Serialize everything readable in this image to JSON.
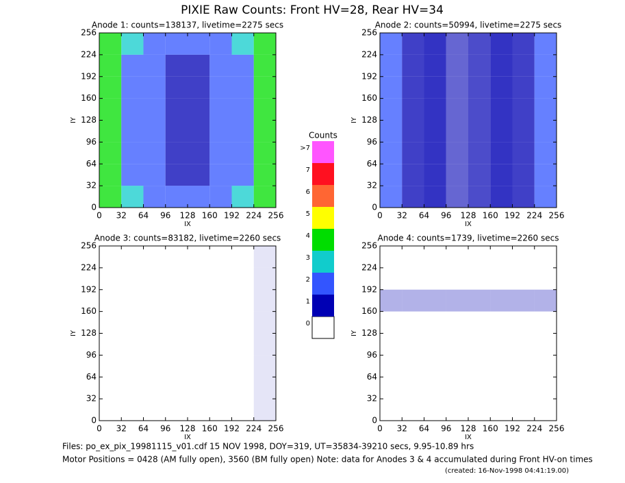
{
  "title": "PIXIE Raw Counts:  Front HV=28, Rear HV=34",
  "chart_data": [
    {
      "type": "heatmap",
      "title": "Anode 1: counts=138137, livetime=2275 secs",
      "xlabel": "IX",
      "ylabel": "IY",
      "xlim": [
        0,
        256
      ],
      "ylim": [
        0,
        256
      ],
      "xticks": [
        0,
        32,
        64,
        96,
        128,
        160,
        192,
        224,
        256
      ],
      "yticks": [
        0,
        32,
        64,
        96,
        128,
        160,
        192,
        224,
        256
      ],
      "values": [
        [
          4,
          2.5,
          2,
          1.5,
          1.5,
          2,
          2.5,
          4
        ],
        [
          3.5,
          2,
          1.5,
          1,
          1.2,
          1.5,
          2,
          3.5
        ],
        [
          3.5,
          2,
          1.5,
          1,
          1.2,
          1.5,
          2,
          3.5
        ],
        [
          3.5,
          2,
          1.5,
          1,
          1.2,
          1.5,
          2,
          3.5
        ],
        [
          3.5,
          2,
          1.5,
          1,
          1.2,
          1.5,
          2,
          3.5
        ],
        [
          3.5,
          2,
          1.5,
          1,
          1.2,
          1.5,
          2,
          3.5
        ],
        [
          3.5,
          2,
          1.5,
          1,
          1.2,
          1.5,
          2,
          3.5
        ],
        [
          4,
          2.5,
          2,
          1.5,
          1.5,
          2,
          2.5,
          4
        ]
      ]
    },
    {
      "type": "heatmap",
      "title": "Anode 2: counts=50994, livetime=2275 secs",
      "xlabel": "IX",
      "ylabel": "IY",
      "xlim": [
        0,
        256
      ],
      "ylim": [
        0,
        256
      ],
      "xticks": [
        0,
        32,
        64,
        96,
        128,
        160,
        192,
        224,
        256
      ],
      "yticks": [
        0,
        32,
        64,
        96,
        128,
        160,
        192,
        224,
        256
      ],
      "values": [
        [
          1.5,
          1,
          0.8,
          0.6,
          0.7,
          0.8,
          1,
          1.5
        ],
        [
          1.5,
          1,
          0.8,
          0.6,
          0.7,
          0.8,
          1,
          1.5
        ],
        [
          1.5,
          1,
          0.8,
          0.6,
          0.7,
          0.8,
          1,
          1.5
        ],
        [
          1.5,
          1,
          0.8,
          0.6,
          0.7,
          0.8,
          1,
          1.5
        ],
        [
          1.5,
          1,
          0.8,
          0.6,
          0.7,
          0.8,
          1,
          1.5
        ],
        [
          1.5,
          1,
          0.8,
          0.6,
          0.7,
          0.8,
          1,
          1.5
        ],
        [
          1.5,
          1,
          0.8,
          0.6,
          0.7,
          0.8,
          1,
          1.5
        ],
        [
          1.5,
          1,
          0.8,
          0.6,
          0.7,
          0.8,
          1,
          1.5
        ]
      ]
    },
    {
      "type": "heatmap",
      "title": "Anode 3: counts=83182, livetime=2260 secs",
      "xlabel": "IX",
      "ylabel": "IY",
      "xlim": [
        0,
        256
      ],
      "ylim": [
        0,
        256
      ],
      "xticks": [
        0,
        32,
        64,
        96,
        128,
        160,
        192,
        224,
        256
      ],
      "yticks": [
        0,
        32,
        64,
        96,
        128,
        160,
        192,
        224,
        256
      ],
      "values": [
        [
          0,
          0,
          0,
          0,
          0,
          0,
          0,
          0.1
        ],
        [
          0,
          0,
          0,
          0,
          0,
          0,
          0,
          0.1
        ],
        [
          0,
          0,
          0,
          0,
          0,
          0,
          0,
          0.1
        ],
        [
          0,
          0,
          0,
          0,
          0,
          0,
          0,
          0.1
        ],
        [
          0,
          0,
          0,
          0,
          0,
          0,
          0,
          0.1
        ],
        [
          0,
          0,
          0,
          0,
          0,
          0,
          0,
          0.1
        ],
        [
          0,
          0,
          0,
          0,
          0,
          0,
          0,
          0.1
        ],
        [
          0,
          0,
          0,
          0,
          0,
          0,
          0,
          0.1
        ]
      ]
    },
    {
      "type": "heatmap",
      "title": "Anode 4: counts=1739, livetime=2260 secs",
      "xlabel": "IX",
      "ylabel": "IY",
      "xlim": [
        0,
        256
      ],
      "ylim": [
        0,
        256
      ],
      "xticks": [
        0,
        32,
        64,
        96,
        128,
        160,
        192,
        224,
        256
      ],
      "yticks": [
        0,
        32,
        64,
        96,
        128,
        160,
        192,
        224,
        256
      ],
      "values": [
        [
          0,
          0,
          0,
          0,
          0,
          0,
          0,
          0
        ],
        [
          0,
          0,
          0,
          0,
          0,
          0,
          0,
          0
        ],
        [
          0,
          0,
          0,
          0,
          0,
          0,
          0,
          0
        ],
        [
          0,
          0,
          0,
          0,
          0,
          0,
          0,
          0
        ],
        [
          0,
          0,
          0,
          0,
          0,
          0,
          0,
          0
        ],
        [
          0.3,
          0.3,
          0.3,
          0.3,
          0.3,
          0.3,
          0.3,
          0.3
        ],
        [
          0,
          0,
          0,
          0,
          0,
          0,
          0,
          0
        ],
        [
          0,
          0,
          0,
          0,
          0,
          0,
          0,
          0
        ]
      ]
    }
  ],
  "colorbar": {
    "title": "Counts",
    "levels": [
      {
        "label": "0",
        "color": "#ffffff"
      },
      {
        "label": "1",
        "color": "#0000b4"
      },
      {
        "label": "2",
        "color": "#3355ff"
      },
      {
        "label": "3",
        "color": "#11cccc"
      },
      {
        "label": "4",
        "color": "#00dd00"
      },
      {
        "label": "5",
        "color": "#ffff00"
      },
      {
        "label": "6",
        "color": "#ff6633"
      },
      {
        "label": "7",
        "color": "#ff1020"
      },
      {
        "label": ">7",
        "color": "#ff55ff"
      }
    ]
  },
  "footer": {
    "files": "Files: po_ex_pix_19981115_v01.cdf    15 NOV 1998, DOY=319, UT=35834-39210 secs,  9.95-10.89 hrs",
    "motor": "Motor Positions = 0428 (AM fully open), 3560 (BM fully open)    Note: data for Anodes 3 & 4 accumulated during Front HV-on times",
    "created": "(created: 16-Nov-1998 04:41:19.00)"
  }
}
